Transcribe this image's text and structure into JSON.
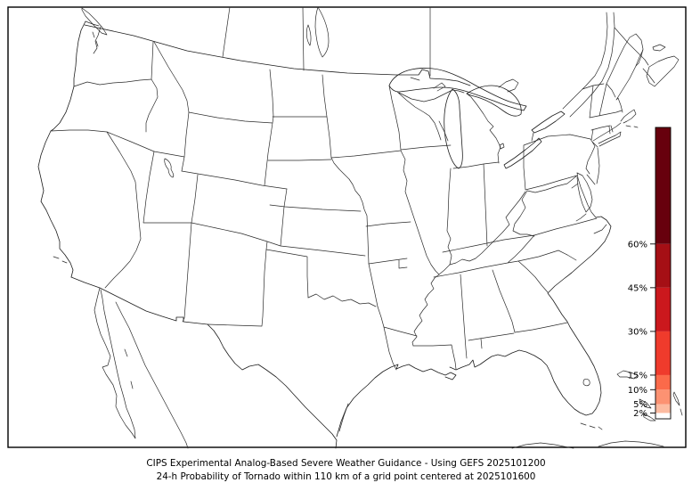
{
  "figure": {
    "background": "#ffffff",
    "frame_color": "#000000",
    "map_line_color": "#1c1c1c"
  },
  "titles": {
    "line1": "CIPS Experimental Analog-Based Severe Weather Guidance - Using GEFS 2025101200",
    "line2": "24-h Probability of Tornado within 110 km of a grid point centered at 2025101600"
  },
  "map": {
    "region": "Continental United States with state borders, southern Canada, northern Mexico, Great Lakes, Baja California, Cuba and Bahamas"
  },
  "colorbar": {
    "units": "%",
    "min": 0,
    "max": 100,
    "ticks": [
      {
        "label": "60%",
        "value": 60
      },
      {
        "label": "45%",
        "value": 45
      },
      {
        "label": "30%",
        "value": 30
      },
      {
        "label": "15%",
        "value": 15
      },
      {
        "label": "10%",
        "value": 10
      },
      {
        "label": "5%",
        "value": 5
      },
      {
        "label": "2%",
        "value": 2
      }
    ],
    "levels": [
      {
        "from": 0,
        "to": 2,
        "color": "#ffffff"
      },
      {
        "from": 2,
        "to": 5,
        "color": "#fcbba1"
      },
      {
        "from": 5,
        "to": 10,
        "color": "#fc9272"
      },
      {
        "from": 10,
        "to": 15,
        "color": "#fb6a4a"
      },
      {
        "from": 15,
        "to": 30,
        "color": "#ef3b2c"
      },
      {
        "from": 30,
        "to": 45,
        "color": "#cb181d"
      },
      {
        "from": 45,
        "to": 60,
        "color": "#a50f15"
      },
      {
        "from": 60,
        "to": 100,
        "color": "#67000d"
      }
    ]
  }
}
